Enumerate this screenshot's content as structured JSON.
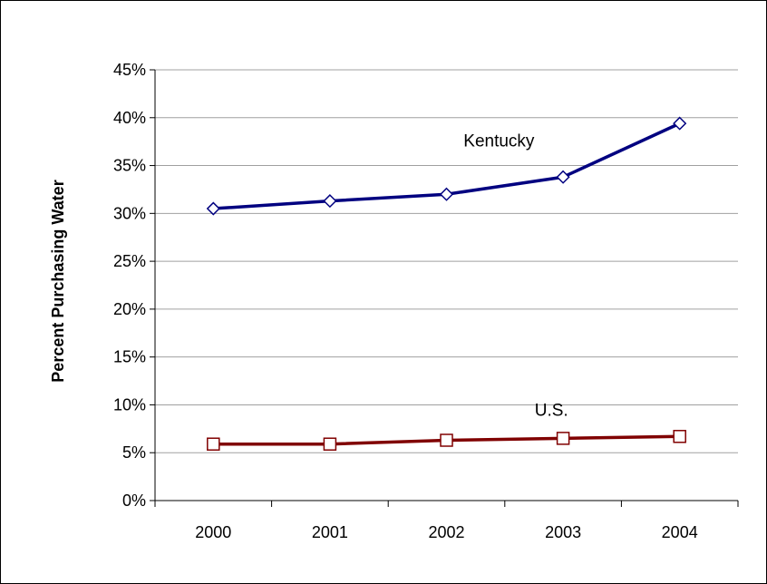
{
  "chart_data": {
    "type": "line",
    "title": "",
    "xlabel": "",
    "ylabel": "Percent Purchasing Water",
    "categories": [
      "2000",
      "2001",
      "2002",
      "2003",
      "2004"
    ],
    "ylim": [
      0,
      45
    ],
    "yticks": [
      0,
      5,
      10,
      15,
      20,
      25,
      30,
      35,
      40,
      45
    ],
    "ytick_labels": [
      "0%",
      "5%",
      "10%",
      "15%",
      "20%",
      "25%",
      "30%",
      "35%",
      "40%",
      "45%"
    ],
    "grid": true,
    "series": [
      {
        "name": "Kentucky",
        "values": [
          30.5,
          31.3,
          32.0,
          33.8,
          39.4
        ],
        "color": "#000080",
        "marker": "diamond"
      },
      {
        "name": "U.S.",
        "values": [
          5.9,
          5.9,
          6.3,
          6.5,
          6.7
        ],
        "color": "#800000",
        "marker": "square"
      }
    ]
  }
}
